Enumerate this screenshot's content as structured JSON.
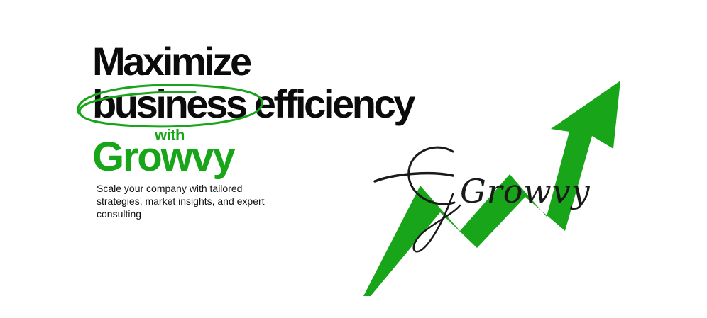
{
  "hero": {
    "headline_line1": "Maximize",
    "headline_line2": "business efficiency",
    "connector": "with",
    "brand": "Growvy",
    "subtitle": "Scale your company with tailored strategies, market insights, and expert consulting"
  },
  "logo": {
    "script_text": "Growvy",
    "icon": "trend-arrow-icon"
  },
  "colors": {
    "accent_green": "#19a519",
    "text_dark": "#0b0b0b"
  }
}
